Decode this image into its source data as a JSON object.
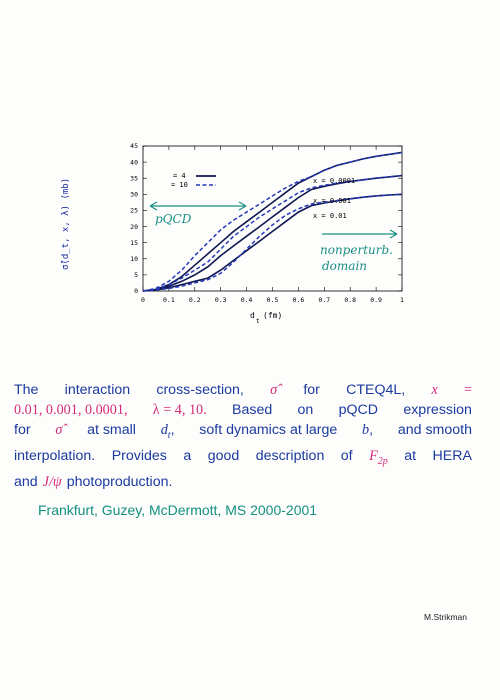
{
  "chart_data": {
    "type": "line",
    "xlabel": "d_t (fm)",
    "ylabel": "σ̂(d_t, x, λ) (mb)",
    "xlim": [
      0,
      1
    ],
    "ylim": [
      0,
      45
    ],
    "xticks": [
      "0",
      "0.1",
      "0.2",
      "0.3",
      "0.4",
      "0.5",
      "0.6",
      "0.7",
      "0.8",
      "0.9",
      "1"
    ],
    "yticks": [
      "0",
      "5",
      "10",
      "15",
      "20",
      "25",
      "30",
      "35",
      "40",
      "45"
    ],
    "legend": [
      {
        "label": "= 4",
        "style": "solid"
      },
      {
        "label": "= 10",
        "style": "dashed"
      }
    ],
    "curve_labels": [
      "x = 0.0001",
      "x = 0.001",
      "x = 0.01"
    ],
    "series": [
      {
        "x": [
          0,
          0.05,
          0.1,
          0.15,
          0.2,
          0.25,
          0.3,
          0.35,
          0.4,
          0.45,
          0.5,
          0.55,
          0.6,
          0.65,
          0.7,
          0.75,
          0.8,
          0.85,
          0.9,
          0.95,
          1.0
        ],
        "values": [
          0,
          0.5,
          2,
          4.5,
          8,
          11.5,
          15,
          18.5,
          21.5,
          24.5,
          27.5,
          30.5,
          33.5,
          35.5,
          37.5,
          39,
          40,
          41,
          41.8,
          42.4,
          43
        ]
      },
      {
        "x": [
          0,
          0.05,
          0.1,
          0.15,
          0.2,
          0.25,
          0.3,
          0.35,
          0.4,
          0.45,
          0.5,
          0.55,
          0.6,
          0.65,
          0.7,
          0.75,
          0.8,
          0.85,
          0.9,
          0.95,
          1.0
        ],
        "values": [
          0,
          0.4,
          1.5,
          3,
          5,
          7.5,
          11,
          14,
          17,
          20,
          23,
          26,
          29,
          31.5,
          32.5,
          33.3,
          34,
          34.5,
          35,
          35.4,
          35.8
        ]
      },
      {
        "x": [
          0,
          0.05,
          0.1,
          0.15,
          0.2,
          0.25,
          0.3,
          0.35,
          0.4,
          0.45,
          0.5,
          0.55,
          0.6,
          0.65,
          0.7,
          0.75,
          0.8,
          0.85,
          0.9,
          0.95,
          1.0
        ],
        "values": [
          0,
          0.3,
          1,
          2,
          3,
          4,
          6.5,
          9.5,
          12.5,
          15.5,
          18.5,
          21.5,
          24.5,
          26.5,
          27.3,
          28,
          28.6,
          29.1,
          29.5,
          29.8,
          30
        ]
      },
      {
        "x": [
          0,
          0.05,
          0.1,
          0.15,
          0.2,
          0.25,
          0.3,
          0.35,
          0.4,
          0.45,
          0.5,
          0.55,
          0.6,
          0.65,
          0.7,
          0.75,
          0.8,
          0.85,
          0.9,
          0.95,
          1.0
        ],
        "values": [
          0,
          0.8,
          3,
          6.5,
          11,
          15,
          19,
          22,
          24.5,
          27,
          29.5,
          32,
          34,
          35.5,
          37.5,
          39,
          40,
          41,
          41.8,
          42.4,
          43
        ]
      },
      {
        "x": [
          0,
          0.05,
          0.1,
          0.15,
          0.2,
          0.25,
          0.3,
          0.35,
          0.4,
          0.45,
          0.5,
          0.55,
          0.6,
          0.65,
          0.7,
          0.75,
          0.8,
          0.85,
          0.9,
          0.95,
          1.0
        ],
        "values": [
          0,
          0.5,
          2,
          4,
          6.5,
          9,
          13,
          17,
          20,
          23,
          25.5,
          28,
          30.5,
          32,
          32.8,
          33.5,
          34,
          34.5,
          35,
          35.4,
          35.8
        ]
      },
      {
        "x": [
          0,
          0.05,
          0.1,
          0.15,
          0.2,
          0.25,
          0.3,
          0.35,
          0.4,
          0.45,
          0.5,
          0.55,
          0.6,
          0.65,
          0.7,
          0.75,
          0.8,
          0.85,
          0.9,
          0.95,
          1.0
        ],
        "values": [
          0,
          0.3,
          0.8,
          1.5,
          2.5,
          3.5,
          5.5,
          9,
          13,
          17,
          20.5,
          23.5,
          25.5,
          27,
          27.6,
          28.1,
          28.6,
          29.1,
          29.5,
          29.8,
          30
        ]
      }
    ],
    "series_styles": [
      "solid",
      "solid",
      "solid",
      "dashed",
      "dashed",
      "dashed"
    ],
    "grid": false,
    "annotations": [
      "pQCD",
      "nonperturb.",
      "domain"
    ]
  },
  "colors": {
    "text_blue": "#1b3a9e",
    "math_magenta": "#d42a7a",
    "authors_teal": "#14907f",
    "annotation_teal": "#1a8f86"
  },
  "caption": {
    "l1_w1": "The",
    "l1_w2": "interaction",
    "l1_w3": "cross-section,",
    "l1_hat": "σ̂",
    "l1_w4": "for",
    "l1_w5": "CTEQ4L,",
    "l1_x": "x",
    "l1_eq": "=",
    "l2_vals": "0.01, 0.001, 0.0001,",
    "l2_lambda": "λ = 4, 10.",
    "l2_w1": "Based",
    "l2_w2": "on",
    "l2_w3": "pQCD",
    "l2_w4": "expression",
    "l3_w1": "for",
    "l3_hat": "σ̂",
    "l3_w2": "at small",
    "l3_dt": "d",
    "l3_dt_sub": "t",
    "l3_w3": ",",
    "l3_w4": "soft dynamics at large",
    "l3_b": "b",
    "l3_w5": ",",
    "l3_w6": "and smooth",
    "l4_w1": "interpolation.",
    "l4_w2": "Provides",
    "l4_w3": "a",
    "l4_w4": "good",
    "l4_w5": "description",
    "l4_w6": "of",
    "l4_f": "F",
    "l4_fsub": "2p",
    "l4_w7": "at",
    "l4_w8": "HERA",
    "l5_w1": "and",
    "l5_jpsi": "J/ψ",
    "l5_w2": "photoproduction."
  },
  "authors": "Frankfurt, Guzey, McDermott, MS 2000-2001",
  "signature": "M.Strikman"
}
